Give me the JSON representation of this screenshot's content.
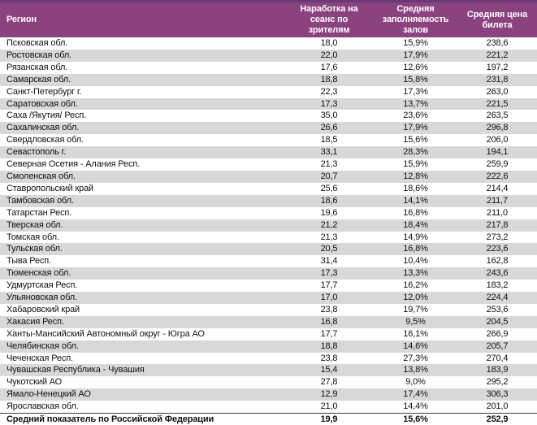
{
  "colors": {
    "header_bg": "#8b4380",
    "header_top_strip": "#6a3a74",
    "header_text": "#ffffff",
    "row_alt_bg": "#d8d8d8"
  },
  "table": {
    "columns": [
      {
        "key": "region",
        "label": "Регион"
      },
      {
        "key": "per_session",
        "label": "Наработка на сеанс по зрителям"
      },
      {
        "key": "occupancy",
        "label": "Средняя заполняемость залов"
      },
      {
        "key": "price",
        "label": "Средняя цена билета"
      }
    ],
    "rows": [
      {
        "region": "Псковская обл.",
        "per_session": "18,0",
        "occupancy": "15,9%",
        "price": "238,6"
      },
      {
        "region": "Ростовская обл.",
        "per_session": "22,0",
        "occupancy": "17,9%",
        "price": "221,2"
      },
      {
        "region": "Рязанская обл.",
        "per_session": "17,6",
        "occupancy": "12,6%",
        "price": "197,2"
      },
      {
        "region": "Самарская обл.",
        "per_session": "18,8",
        "occupancy": "15,8%",
        "price": "231,8"
      },
      {
        "region": "Санкт-Петербург г.",
        "per_session": "22,3",
        "occupancy": "17,3%",
        "price": "263,0"
      },
      {
        "region": "Саратовская обл.",
        "per_session": "17,3",
        "occupancy": "13,7%",
        "price": "221,5"
      },
      {
        "region": "Саха /Якутия/ Респ.",
        "per_session": "35,0",
        "occupancy": "23,6%",
        "price": "263,5"
      },
      {
        "region": "Сахалинская обл.",
        "per_session": "26,6",
        "occupancy": "17,9%",
        "price": "296,8"
      },
      {
        "region": "Свердловская обл.",
        "per_session": "18,5",
        "occupancy": "15,6%",
        "price": "206,0"
      },
      {
        "region": "Севастополь г.",
        "per_session": "33,1",
        "occupancy": "28,3%",
        "price": "194,1"
      },
      {
        "region": "Северная Осетия - Алания Респ.",
        "per_session": "21,3",
        "occupancy": "15,9%",
        "price": "259,9"
      },
      {
        "region": "Смоленская обл.",
        "per_session": "20,7",
        "occupancy": "12,8%",
        "price": "222,6"
      },
      {
        "region": "Ставропольский край",
        "per_session": "25,6",
        "occupancy": "18,6%",
        "price": "214,4"
      },
      {
        "region": "Тамбовская обл.",
        "per_session": "18,6",
        "occupancy": "14,1%",
        "price": "211,7"
      },
      {
        "region": "Татарстан Респ.",
        "per_session": "19,6",
        "occupancy": "16,8%",
        "price": "211,0"
      },
      {
        "region": "Тверская обл.",
        "per_session": "21,2",
        "occupancy": "18,4%",
        "price": "217,8"
      },
      {
        "region": "Томская обл.",
        "per_session": "21,3",
        "occupancy": "14,9%",
        "price": "273,2"
      },
      {
        "region": "Тульская обл.",
        "per_session": "20,5",
        "occupancy": "16,8%",
        "price": "223,6"
      },
      {
        "region": "Тыва Респ.",
        "per_session": "31,4",
        "occupancy": "10,4%",
        "price": "162,8"
      },
      {
        "region": "Тюменская обл.",
        "per_session": "17,3",
        "occupancy": "13,3%",
        "price": "243,6"
      },
      {
        "region": "Удмуртская Респ.",
        "per_session": "17,7",
        "occupancy": "16,2%",
        "price": "183,2"
      },
      {
        "region": "Ульяновская обл.",
        "per_session": "17,0",
        "occupancy": "12,0%",
        "price": "224,4"
      },
      {
        "region": "Хабаровский край",
        "per_session": "23,8",
        "occupancy": "19,7%",
        "price": "253,6"
      },
      {
        "region": "Хакасия Респ.",
        "per_session": "16,8",
        "occupancy": "9,5%",
        "price": "204,5"
      },
      {
        "region": "Ханты-Мансийский Автономный округ - Югра АО",
        "per_session": "17,7",
        "occupancy": "16,1%",
        "price": "266,9"
      },
      {
        "region": "Челябинская обл.",
        "per_session": "18,8",
        "occupancy": "14,6%",
        "price": "205,7"
      },
      {
        "region": "Чеченская Респ.",
        "per_session": "23,8",
        "occupancy": "27,3%",
        "price": "270,4"
      },
      {
        "region": "Чувашская Республика - Чувашия",
        "per_session": "15,4",
        "occupancy": "13,8%",
        "price": "183,9"
      },
      {
        "region": "Чукотский АО",
        "per_session": "27,8",
        "occupancy": "9,0%",
        "price": "295,2"
      },
      {
        "region": "Ямало-Ненецкий АО",
        "per_session": "12,9",
        "occupancy": "17,4%",
        "price": "306,3"
      },
      {
        "region": "Ярославская обл.",
        "per_session": "21,0",
        "occupancy": "14,4%",
        "price": "201,0"
      }
    ],
    "total_row": {
      "region": "Средний показатель по Российской Федерации",
      "per_session": "19,9",
      "occupancy": "15,6%",
      "price": "252,9"
    }
  }
}
